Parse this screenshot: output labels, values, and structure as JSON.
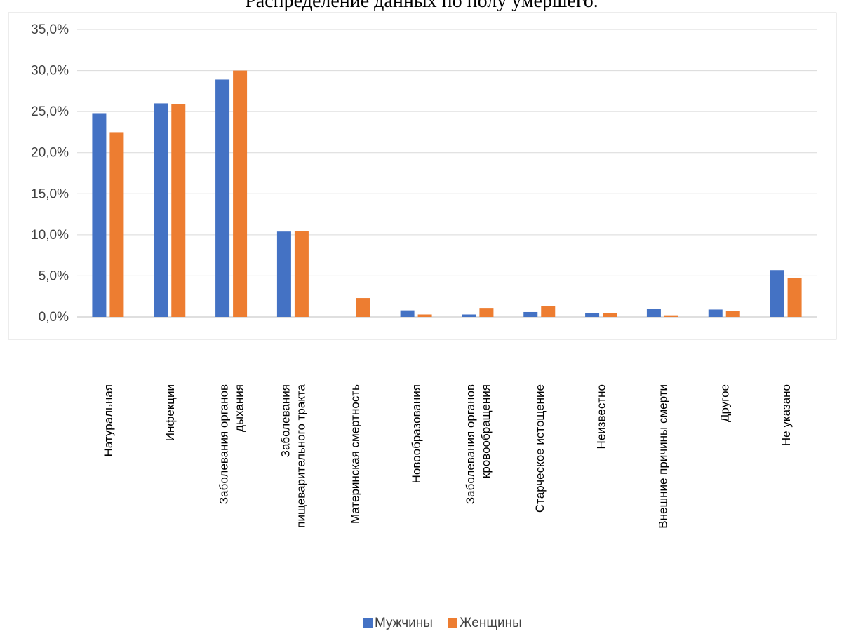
{
  "chart_data": {
    "type": "bar",
    "title": "Распределение данных по полу умершего.",
    "xlabel": "",
    "ylabel": "",
    "ylim": [
      0,
      35
    ],
    "yticks": [
      "0,0%",
      "5,0%",
      "10,0%",
      "15,0%",
      "20,0%",
      "25,0%",
      "30,0%",
      "35,0%"
    ],
    "grid": true,
    "legend_position": "bottom",
    "categories": [
      [
        "Натуральная"
      ],
      [
        "Инфекции"
      ],
      [
        "Заболевания органов",
        "дыхания"
      ],
      [
        "Заболевания",
        "пищеварительного тракта"
      ],
      [
        "Материнская смертность"
      ],
      [
        "Новообразования"
      ],
      [
        "Заболевания органов",
        "кровообращения"
      ],
      [
        "Старческое истощение"
      ],
      [
        "Неизвестно"
      ],
      [
        "Внешние причины смерти"
      ],
      [
        "Другое"
      ],
      [
        "Не указано"
      ]
    ],
    "series": [
      {
        "name": "Мужчины",
        "color": "#4472C4",
        "values": [
          24.8,
          26.0,
          28.9,
          10.4,
          0.0,
          0.8,
          0.3,
          0.6,
          0.5,
          1.0,
          0.9,
          5.7
        ]
      },
      {
        "name": "Женщины",
        "color": "#ED7D31",
        "values": [
          22.5,
          25.9,
          30.0,
          10.5,
          2.3,
          0.3,
          1.1,
          1.3,
          0.5,
          0.2,
          0.7,
          4.7
        ]
      }
    ]
  }
}
